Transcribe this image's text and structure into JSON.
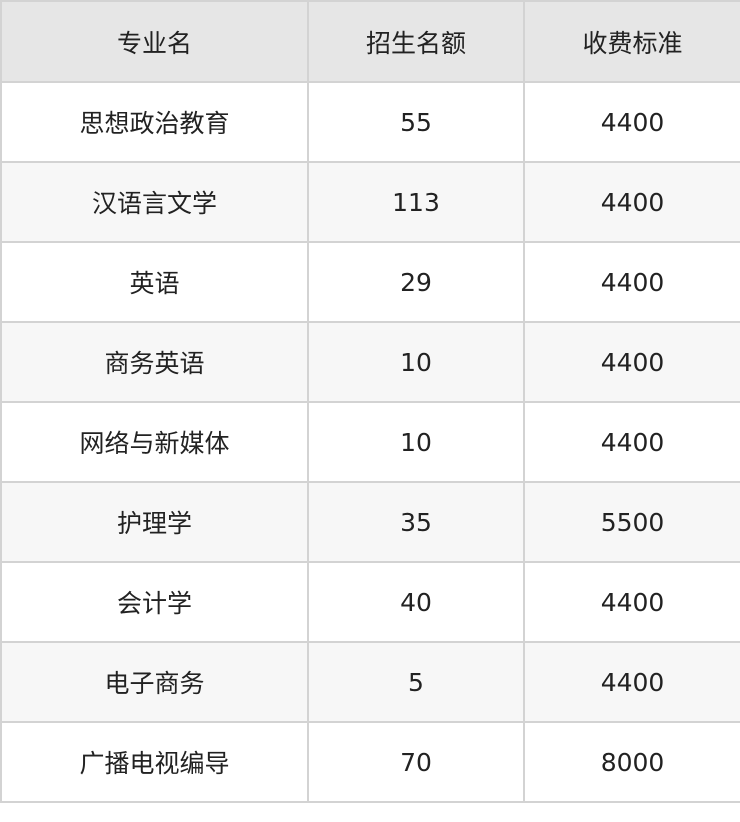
{
  "table": {
    "headers": [
      "专业名",
      "招生名额",
      "收费标准"
    ],
    "rows": [
      [
        "思想政治教育",
        "55",
        "4400"
      ],
      [
        "汉语言文学",
        "113",
        "4400"
      ],
      [
        "英语",
        "29",
        "4400"
      ],
      [
        "商务英语",
        "10",
        "4400"
      ],
      [
        "网络与新媒体",
        "10",
        "4400"
      ],
      [
        "护理学",
        "35",
        "5500"
      ],
      [
        "会计学",
        "40",
        "4400"
      ],
      [
        "电子商务",
        "5",
        "4400"
      ],
      [
        "广播电视编导",
        "70",
        "8000"
      ]
    ]
  }
}
